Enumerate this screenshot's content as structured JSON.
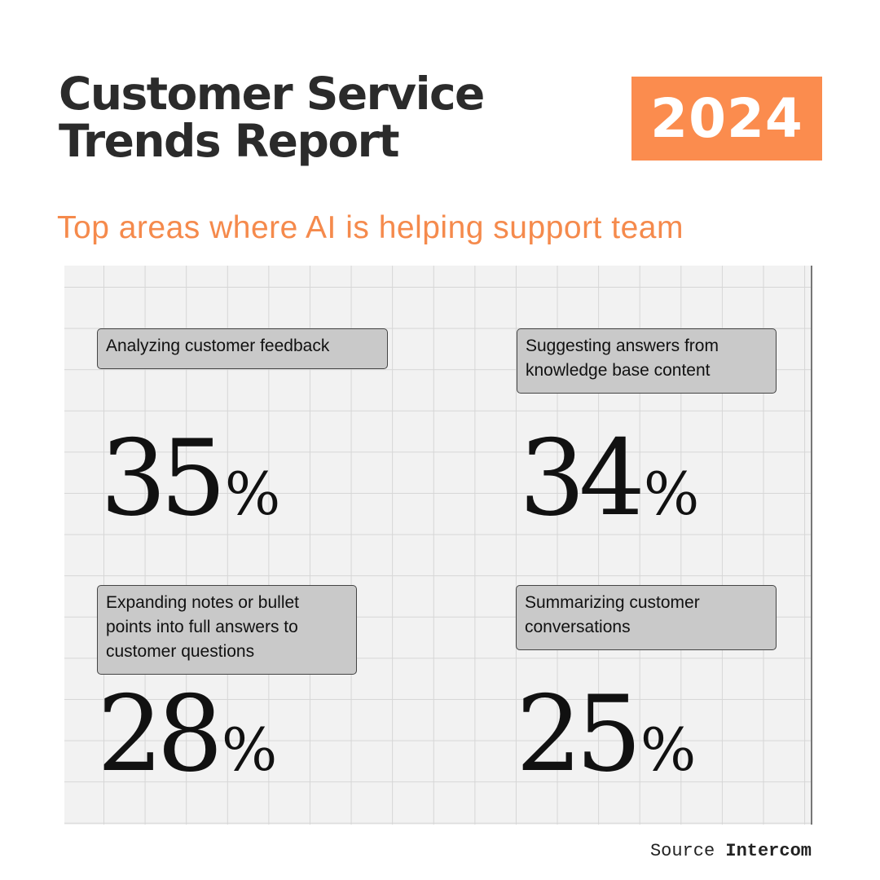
{
  "header": {
    "title_line1": "Customer Service",
    "title_line2": "Trends Report",
    "year": "2024"
  },
  "subtitle": "Top areas where AI is helping support team",
  "stats": [
    {
      "label": "Analyzing customer feedback",
      "value": "35",
      "unit": "%"
    },
    {
      "label": "Suggesting answers from knowledge base content",
      "value": "34",
      "unit": "%"
    },
    {
      "label": "Expanding notes or bullet points into full answers to customer questions",
      "value": "28",
      "unit": "%"
    },
    {
      "label": "Summarizing customer conversations",
      "value": "25",
      "unit": "%"
    }
  ],
  "source": {
    "prefix": "Source",
    "name": "Intercom"
  },
  "colors": {
    "accent": "#fb8c4e"
  }
}
